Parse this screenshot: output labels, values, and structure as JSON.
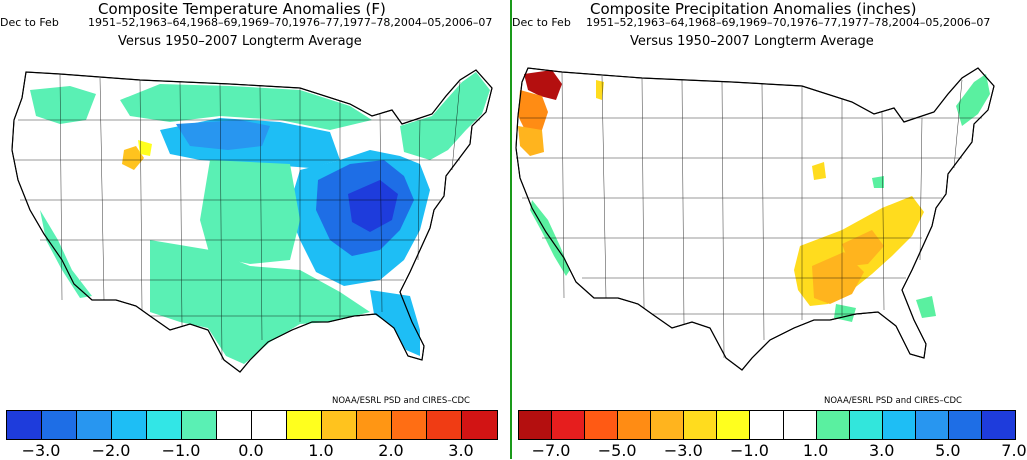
{
  "panels": [
    {
      "id": "temperature",
      "season": "Dec to Feb",
      "title": "Composite Temperature Anomalies (F)",
      "years": "1951–52,1963–64,1968–69,1969–70,1976–77,1977–78,2004–05,2006–07",
      "baseline": "Versus 1950–2007 Longterm Average",
      "credit": "NOAA/ESRL PSD and CIRES–CDC",
      "scale_colors": [
        "#1e3cdc",
        "#1e6ee6",
        "#2896f0",
        "#1ebef5",
        "#32e6e6",
        "#5af0b4",
        "#ffffff",
        "#ffffff",
        "#ffff1e",
        "#ffc31e",
        "#ff9614",
        "#ff6e14",
        "#f03c14",
        "#d21414"
      ],
      "tick_labels": [
        "−3.0",
        "−2.0",
        "−1.0",
        "0.0",
        "1.0",
        "2.0",
        "3.0"
      ]
    },
    {
      "id": "precipitation",
      "season": "Dec to Feb",
      "title": "Composite Precipitation Anomalies (inches)",
      "years": "1951–52,1963–64,1968–69,1969–70,1976–77,1977–78,2004–05,2006–07",
      "baseline": "Versus 1950–2007 Longterm Average",
      "credit": "NOAA/ESRL PSD and CIRES–CDC",
      "scale_colors": [
        "#b40f0f",
        "#e61e1e",
        "#ff5a14",
        "#ff8c14",
        "#ffb41e",
        "#ffdc1e",
        "#ffff1e",
        "#ffffff",
        "#ffffff",
        "#5af0a0",
        "#32e6dc",
        "#1ebef5",
        "#2896f0",
        "#1e6ee6",
        "#1e3cdc"
      ],
      "tick_labels": [
        "−7.0",
        "−5.0",
        "−3.0",
        "−1.0",
        "1.0",
        "3.0",
        "5.0",
        "7.0"
      ]
    }
  ]
}
